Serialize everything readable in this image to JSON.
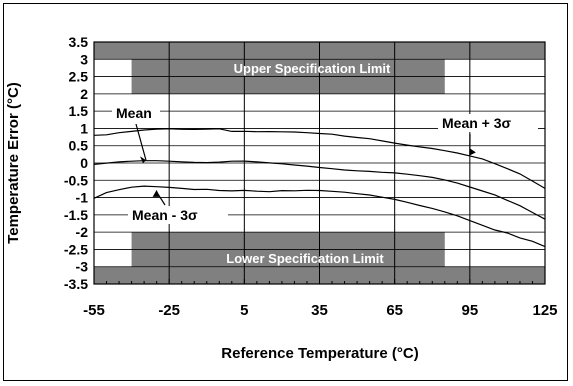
{
  "chart_data": {
    "type": "line",
    "xlabel": "Reference Temperature (°C)",
    "ylabel": "Temperature Error (°C)",
    "xlim": [
      -55,
      125
    ],
    "ylim": [
      -3.5,
      3.5
    ],
    "x_ticks": [
      -55,
      -25,
      5,
      35,
      65,
      95,
      125
    ],
    "y_ticks": [
      "3.5",
      "3",
      "2.5",
      "2",
      "1.5",
      "1",
      "0.5",
      "0",
      "-0.5",
      "-1",
      "-1.5",
      "-2",
      "-2.5",
      "-3",
      "-3.5"
    ],
    "grid": true,
    "spec_limits": {
      "upper_label": "Upper Specification Limit",
      "lower_label": "Lower Specification Limit",
      "upper_band": [
        [
          -55,
          3.0
        ],
        [
          -40,
          2.0
        ],
        [
          85,
          2.0
        ],
        [
          125,
          3.0
        ]
      ],
      "lower_band": [
        [
          -55,
          -3.0
        ],
        [
          -40,
          -2.0
        ],
        [
          85,
          -2.0
        ],
        [
          125,
          -3.0
        ]
      ]
    },
    "annotations": [
      {
        "text": "Mean",
        "x": -38,
        "y": 0.15
      },
      {
        "text": "Mean + 3σ",
        "x": 90,
        "y": 0.5
      },
      {
        "text": "Mean - 3σ",
        "x": -30,
        "y": -0.8
      }
    ],
    "series": [
      {
        "name": "Mean + 3σ",
        "x": [
          -55,
          -50,
          -45,
          -40,
          -35,
          -30,
          -25,
          -20,
          -15,
          -10,
          -5,
          0,
          5,
          10,
          15,
          20,
          25,
          30,
          35,
          40,
          45,
          50,
          55,
          60,
          65,
          70,
          75,
          80,
          85,
          90,
          95,
          100,
          105,
          110,
          115,
          120,
          125
        ],
        "y": [
          0.8,
          0.8,
          0.85,
          0.88,
          0.92,
          0.95,
          0.97,
          0.97,
          0.98,
          1.0,
          1.02,
          0.95,
          0.95,
          0.93,
          0.92,
          0.9,
          0.88,
          0.85,
          0.82,
          0.8,
          0.75,
          0.72,
          0.7,
          0.65,
          0.6,
          0.55,
          0.5,
          0.45,
          0.38,
          0.3,
          0.2,
          0.1,
          -0.05,
          -0.2,
          -0.35,
          -0.55,
          -0.75
        ]
      },
      {
        "name": "Mean",
        "x": [
          -55,
          -50,
          -45,
          -40,
          -35,
          -30,
          -25,
          -20,
          -15,
          -10,
          -5,
          0,
          5,
          10,
          15,
          20,
          25,
          30,
          35,
          40,
          45,
          50,
          55,
          60,
          65,
          70,
          75,
          80,
          85,
          90,
          95,
          100,
          105,
          110,
          115,
          120,
          125
        ],
        "y": [
          -0.05,
          0.0,
          0.05,
          0.08,
          0.1,
          0.1,
          0.08,
          0.05,
          0.02,
          0.0,
          0.0,
          0.02,
          0.02,
          0.0,
          -0.02,
          -0.03,
          -0.05,
          -0.07,
          -0.1,
          -0.13,
          -0.17,
          -0.2,
          -0.23,
          -0.27,
          -0.3,
          -0.35,
          -0.4,
          -0.45,
          -0.52,
          -0.6,
          -0.7,
          -0.8,
          -0.9,
          -1.05,
          -1.2,
          -1.4,
          -1.6
        ]
      },
      {
        "name": "Mean - 3σ",
        "x": [
          -55,
          -50,
          -45,
          -40,
          -35,
          -30,
          -25,
          -20,
          -15,
          -10,
          -5,
          0,
          5,
          10,
          15,
          20,
          25,
          30,
          35,
          40,
          45,
          50,
          55,
          60,
          65,
          70,
          75,
          80,
          85,
          90,
          95,
          100,
          105,
          110,
          115,
          120,
          125
        ],
        "y": [
          -1.0,
          -0.85,
          -0.78,
          -0.72,
          -0.7,
          -0.72,
          -0.74,
          -0.76,
          -0.78,
          -0.76,
          -0.78,
          -0.78,
          -0.76,
          -0.78,
          -0.8,
          -0.78,
          -0.8,
          -0.8,
          -0.82,
          -0.85,
          -0.88,
          -0.92,
          -0.95,
          -1.0,
          -1.05,
          -1.12,
          -1.2,
          -1.28,
          -1.38,
          -1.5,
          -1.65,
          -1.8,
          -1.95,
          -2.05,
          -2.2,
          -2.3,
          -2.45
        ]
      }
    ]
  }
}
